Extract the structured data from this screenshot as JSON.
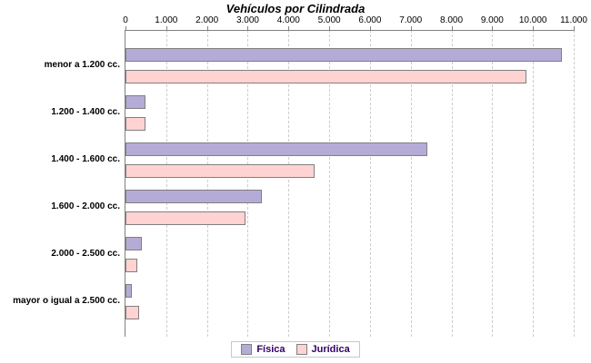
{
  "colors": {
    "background": "#ffffff",
    "axis": "#808080",
    "gridline": "#cdcdcd",
    "text": "#000000",
    "legend_text": "#330066",
    "fisica_fill": "#b5abd7",
    "juridica_fill": "#fed3d2",
    "bar_border": "#808080"
  },
  "chart_data": {
    "type": "bar",
    "orientation": "horizontal",
    "title": "Vehículos por Cilindrada",
    "categories": [
      "menor a 1.200 cc.",
      "1.200 - 1.400 cc.",
      "1.400 - 1.600 cc.",
      "1.600 - 2.000 cc.",
      "2.000 - 2.500 cc.",
      "mayor o igual a 2.500 cc."
    ],
    "series": [
      {
        "name": "Física",
        "color": "#b5abd7",
        "border": "#808080",
        "values": [
          10700,
          500,
          7400,
          3350,
          400,
          150
        ]
      },
      {
        "name": "Jurídica",
        "color": "#fed3d2",
        "border": "#808080",
        "values": [
          9850,
          500,
          4650,
          2950,
          280,
          330
        ]
      }
    ],
    "xlim": [
      0,
      11000
    ],
    "x_tick_step": 1000,
    "x_tick_labels": [
      "0",
      "1.000",
      "2.000",
      "3.000",
      "4.000",
      "5.000",
      "6.000",
      "7.000",
      "8.000",
      "9.000",
      "10.000",
      "11.000"
    ],
    "grid": "vertical-dashed",
    "axis_position": "top",
    "legend_position": "bottom"
  }
}
